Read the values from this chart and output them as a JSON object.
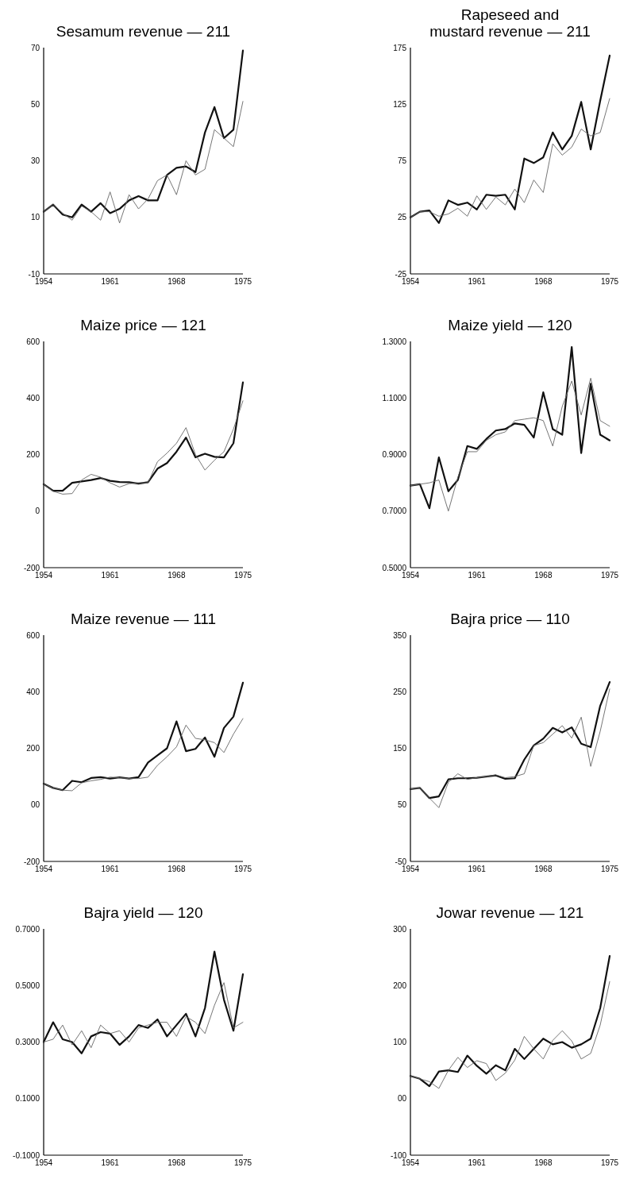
{
  "chart_data": [
    {
      "type": "line",
      "title": "Sesamum revenue — 211",
      "x": [
        1954,
        1955,
        1956,
        1957,
        1958,
        1959,
        1960,
        1961,
        1962,
        1963,
        1964,
        1965,
        1966,
        1967,
        1968,
        1969,
        1970,
        1971,
        1972,
        1973,
        1974,
        1975
      ],
      "xlim": [
        1954,
        1975
      ],
      "xticks": [
        1954,
        1961,
        1968,
        1975
      ],
      "ylim": [
        -10,
        70
      ],
      "yticks": [
        -10,
        10,
        30,
        50,
        70
      ],
      "series": [
        {
          "color": "#111111",
          "values": [
            12,
            14.5,
            11,
            10,
            14.5,
            12,
            15,
            11.5,
            13,
            16,
            17.5,
            16,
            16,
            25,
            27.5,
            28,
            26,
            40,
            49,
            38,
            41,
            69
          ]
        },
        {
          "color": "#666666",
          "values": [
            12,
            14.5,
            11.5,
            9,
            14,
            12,
            9,
            19,
            8,
            18,
            13,
            16.5,
            23,
            25,
            18,
            30,
            25,
            27,
            41,
            38,
            35,
            51
          ]
        }
      ]
    },
    {
      "type": "line",
      "title": "Rapeseed and\nmustard revenue — 211",
      "x": [
        1954,
        1955,
        1956,
        1957,
        1958,
        1959,
        1960,
        1961,
        1962,
        1963,
        1964,
        1965,
        1966,
        1967,
        1968,
        1969,
        1970,
        1971,
        1972,
        1973,
        1974,
        1975
      ],
      "xlim": [
        1954,
        1975
      ],
      "xticks": [
        1954,
        1961,
        1968,
        1975
      ],
      "ylim": [
        -25,
        175
      ],
      "yticks": [
        -25,
        25,
        75,
        125,
        175
      ],
      "series": [
        {
          "color": "#111111",
          "values": [
            25,
            30,
            31,
            20,
            40,
            36,
            38,
            32,
            45,
            44,
            45,
            32,
            77,
            73,
            78,
            100,
            85,
            97,
            127,
            85,
            128,
            168
          ]
        },
        {
          "color": "#666666",
          "values": [
            25,
            30,
            30,
            26,
            28,
            33,
            26,
            44,
            32,
            43,
            36,
            50,
            38,
            58,
            47,
            90,
            80,
            87,
            103,
            97,
            100,
            130
          ]
        }
      ]
    },
    {
      "type": "line",
      "title": "Maize price — 121",
      "x": [
        1954,
        1955,
        1956,
        1957,
        1958,
        1959,
        1960,
        1961,
        1962,
        1963,
        1964,
        1965,
        1966,
        1967,
        1968,
        1969,
        1970,
        1971,
        1972,
        1973,
        1974,
        1975
      ],
      "xlim": [
        1954,
        1975
      ],
      "xticks": [
        1954,
        1961,
        1968,
        1975
      ],
      "ylim": [
        -200,
        600
      ],
      "yticks": [
        -200,
        0,
        200,
        400,
        600
      ],
      "series": [
        {
          "color": "#111111",
          "values": [
            95,
            72,
            72,
            100,
            105,
            110,
            117,
            107,
            103,
            102,
            97,
            102,
            150,
            170,
            210,
            260,
            190,
            203,
            192,
            190,
            240,
            455
          ]
        },
        {
          "color": "#666666",
          "values": [
            95,
            70,
            60,
            62,
            110,
            130,
            120,
            100,
            85,
            97,
            100,
            100,
            175,
            205,
            240,
            295,
            200,
            145,
            180,
            210,
            290,
            390
          ]
        }
      ]
    },
    {
      "type": "line",
      "title": "Maize yield — 120",
      "x": [
        1954,
        1955,
        1956,
        1957,
        1958,
        1959,
        1960,
        1961,
        1962,
        1963,
        1964,
        1965,
        1966,
        1967,
        1968,
        1969,
        1970,
        1971,
        1972,
        1973,
        1974,
        1975
      ],
      "xlim": [
        1954,
        1975
      ],
      "xticks": [
        1954,
        1961,
        1968,
        1975
      ],
      "ylim": [
        0.5,
        1.3
      ],
      "yticks": [
        {
          "value": 0.5,
          "label": "0.5000"
        },
        {
          "value": 0.7,
          "label": "0.7000"
        },
        {
          "value": 0.9,
          "label": "0.9000"
        },
        {
          "value": 1.1,
          "label": "1.1000"
        },
        {
          "value": 1.3,
          "label": "1.3000"
        }
      ],
      "series": [
        {
          "color": "#111111",
          "values": [
            0.79,
            0.795,
            0.71,
            0.89,
            0.77,
            0.81,
            0.93,
            0.92,
            0.955,
            0.985,
            0.99,
            1.01,
            1.005,
            0.96,
            1.12,
            0.99,
            0.97,
            1.28,
            0.905,
            1.15,
            0.97,
            0.95
          ]
        },
        {
          "color": "#666666",
          "values": [
            0.79,
            0.795,
            0.8,
            0.81,
            0.7,
            0.82,
            0.91,
            0.91,
            0.95,
            0.97,
            0.98,
            1.02,
            1.025,
            1.03,
            1.02,
            0.93,
            1.07,
            1.16,
            1.04,
            1.17,
            1.02,
            1
          ]
        }
      ]
    },
    {
      "type": "line",
      "title": "Maize revenue — 111",
      "x": [
        1954,
        1955,
        1956,
        1957,
        1958,
        1959,
        1960,
        1961,
        1962,
        1963,
        1964,
        1965,
        1966,
        1967,
        1968,
        1969,
        1970,
        1971,
        1972,
        1973,
        1974,
        1975
      ],
      "xlim": [
        1954,
        1975
      ],
      "xticks": [
        1954,
        1961,
        1968,
        1975
      ],
      "ylim": [
        -200,
        600
      ],
      "yticks": [
        -200,
        {
          "value": 0,
          "label": "00"
        },
        200,
        400,
        600
      ],
      "series": [
        {
          "color": "#111111",
          "values": [
            75,
            60,
            52,
            85,
            80,
            95,
            98,
            93,
            97,
            93,
            98,
            150,
            175,
            200,
            295,
            190,
            198,
            238,
            170,
            272,
            312,
            432
          ]
        },
        {
          "color": "#666666",
          "values": [
            75,
            60,
            52,
            50,
            78,
            85,
            90,
            98,
            96,
            93,
            93,
            98,
            140,
            170,
            205,
            282,
            235,
            230,
            220,
            185,
            250,
            305
          ]
        }
      ]
    },
    {
      "type": "line",
      "title": "Bajra price — 110",
      "x": [
        1954,
        1955,
        1956,
        1957,
        1958,
        1959,
        1960,
        1961,
        1962,
        1963,
        1964,
        1965,
        1966,
        1967,
        1968,
        1969,
        1970,
        1971,
        1972,
        1973,
        1974,
        1975
      ],
      "xlim": [
        1954,
        1975
      ],
      "xticks": [
        1954,
        1961,
        1968,
        1975
      ],
      "ylim": [
        -50,
        350
      ],
      "yticks": [
        -50,
        50,
        150,
        250,
        350
      ],
      "series": [
        {
          "color": "#111111",
          "values": [
            78,
            80,
            62,
            65,
            95,
            97,
            97,
            98,
            100,
            102,
            96,
            97,
            130,
            155,
            167,
            186,
            178,
            187,
            158,
            152,
            225,
            267
          ]
        },
        {
          "color": "#666666",
          "values": [
            78,
            80,
            62,
            45,
            90,
            105,
            95,
            98,
            100,
            103,
            98,
            100,
            105,
            155,
            160,
            175,
            190,
            168,
            205,
            118,
            180,
            255
          ]
        }
      ]
    },
    {
      "type": "line",
      "title": "Bajra yield — 120",
      "x": [
        1954,
        1955,
        1956,
        1957,
        1958,
        1959,
        1960,
        1961,
        1962,
        1963,
        1964,
        1965,
        1966,
        1967,
        1968,
        1969,
        1970,
        1971,
        1972,
        1973,
        1974,
        1975
      ],
      "xlim": [
        1954,
        1975
      ],
      "xticks": [
        1954,
        1961,
        1968,
        1975
      ],
      "ylim": [
        -0.1,
        0.7
      ],
      "yticks": [
        {
          "value": -0.1,
          "label": "-0.1000"
        },
        {
          "value": 0.1,
          "label": "0.1000"
        },
        {
          "value": 0.3,
          "label": "0.3000"
        },
        {
          "value": 0.5,
          "label": "0.5000"
        },
        {
          "value": 0.7,
          "label": "0.7000"
        }
      ],
      "series": [
        {
          "color": "#111111",
          "values": [
            0.3,
            0.37,
            0.31,
            0.3,
            0.26,
            0.32,
            0.335,
            0.33,
            0.29,
            0.32,
            0.36,
            0.35,
            0.38,
            0.32,
            0.36,
            0.4,
            0.32,
            0.42,
            0.62,
            0.45,
            0.34,
            0.54
          ]
        },
        {
          "color": "#666666",
          "values": [
            0.3,
            0.31,
            0.36,
            0.29,
            0.34,
            0.28,
            0.36,
            0.33,
            0.34,
            0.3,
            0.35,
            0.36,
            0.37,
            0.37,
            0.32,
            0.39,
            0.37,
            0.33,
            0.43,
            0.51,
            0.35,
            0.37
          ]
        }
      ]
    },
    {
      "type": "line",
      "title": "Jowar revenue — 121",
      "x": [
        1954,
        1955,
        1956,
        1957,
        1958,
        1959,
        1960,
        1961,
        1962,
        1963,
        1964,
        1965,
        1966,
        1967,
        1968,
        1969,
        1970,
        1971,
        1972,
        1973,
        1974,
        1975
      ],
      "xlim": [
        1954,
        1975
      ],
      "xticks": [
        1954,
        1961,
        1968,
        1975
      ],
      "ylim": [
        -100,
        300
      ],
      "yticks": [
        -100,
        {
          "value": 0,
          "label": "00"
        },
        100,
        200,
        300
      ],
      "series": [
        {
          "color": "#111111",
          "values": [
            40,
            35,
            22,
            48,
            50,
            47,
            76,
            58,
            44,
            59,
            50,
            88,
            70,
            88,
            106,
            96,
            100,
            90,
            96,
            106,
            160,
            252
          ]
        },
        {
          "color": "#666666",
          "values": [
            40,
            35,
            30,
            18,
            50,
            73,
            55,
            67,
            62,
            32,
            45,
            68,
            110,
            88,
            70,
            103,
            120,
            102,
            70,
            80,
            130,
            207
          ]
        }
      ]
    }
  ]
}
